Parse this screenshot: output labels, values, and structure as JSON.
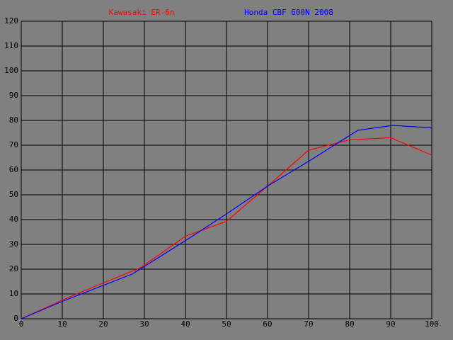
{
  "chart_data": {
    "type": "line",
    "series": [
      {
        "name": "Kawasaki ER-6n",
        "color": "#ff0000",
        "x": [
          0,
          10,
          20,
          29,
          40,
          50,
          60,
          70,
          80,
          90,
          100
        ],
        "values": [
          0,
          7.5,
          14.5,
          20.5,
          33.3,
          39.3,
          53.5,
          68,
          72.2,
          73,
          66
        ]
      },
      {
        "name": "Honda CBF 600N 2008",
        "color": "#0000ff",
        "x": [
          0,
          10,
          27,
          40,
          50,
          60,
          70,
          82,
          90.5,
          100
        ],
        "values": [
          0,
          7,
          18,
          31.5,
          42.3,
          53.5,
          63.5,
          76,
          78,
          77
        ]
      }
    ],
    "xlim": [
      0,
      100
    ],
    "xticks": [
      0,
      10,
      20,
      30,
      40,
      50,
      60,
      70,
      80,
      90,
      100
    ],
    "ylim": [
      0,
      120
    ],
    "yticks": [
      0,
      10,
      20,
      30,
      40,
      50,
      60,
      70,
      80,
      90,
      100,
      110,
      120
    ],
    "grid": true
  }
}
